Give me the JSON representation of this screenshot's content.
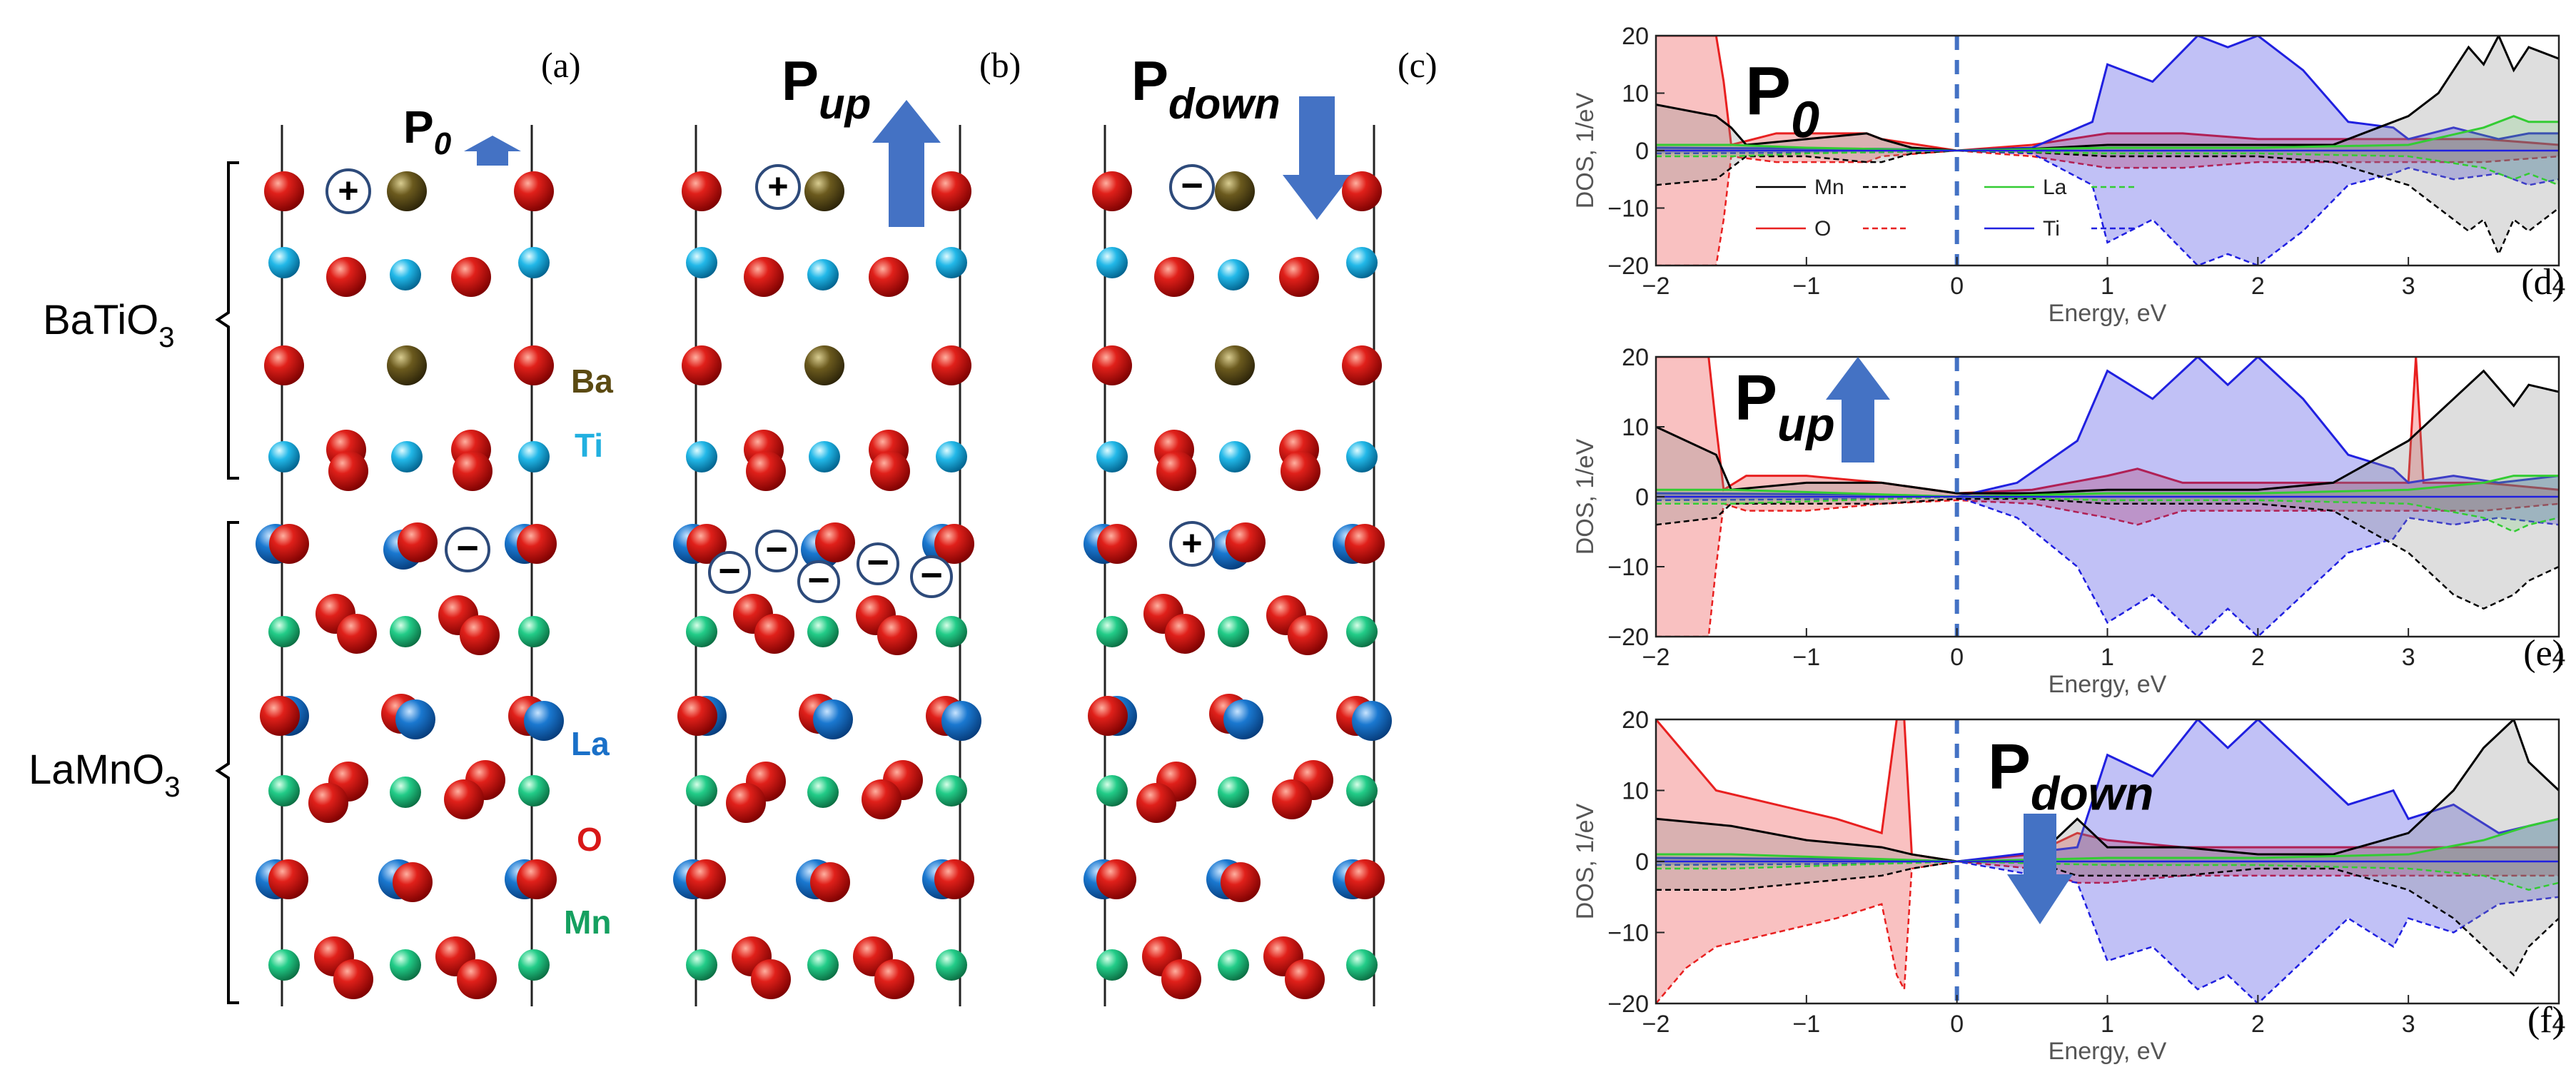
{
  "panel_labels": [
    "(a)",
    "(b)",
    "(c)",
    "(d)",
    "(e)",
    "(f)"
  ],
  "structure": {
    "bto_label": "BaTiO",
    "bto_sub": "3",
    "lmo_label": "LaMnO",
    "lmo_sub": "3",
    "legend": {
      "ba": "Ba",
      "ti": "Ti",
      "la": "La",
      "o": "O",
      "mn": "Mn"
    },
    "polarization": [
      {
        "p": "P",
        "sub": "0",
        "direction": "up"
      },
      {
        "p": "P",
        "sub": "up",
        "direction": "up"
      },
      {
        "p": "P",
        "sub": "down",
        "direction": "down"
      }
    ],
    "charges": {
      "a": [
        "+",
        "−"
      ],
      "b": [
        "+",
        "−",
        "−",
        "−",
        "−",
        "−"
      ],
      "c": [
        "−",
        "+"
      ]
    }
  },
  "chart_data": [
    {
      "type": "area",
      "panel": "(d)",
      "annotation": "P0",
      "xlabel": "Energy, eV",
      "ylabel": "DOS, 1/eV",
      "xlim": [
        -2,
        4
      ],
      "ylim": [
        -20,
        20
      ],
      "xticks": [
        -2,
        -1,
        0,
        1,
        2,
        3,
        4
      ],
      "yticks": [
        -20,
        -10,
        0,
        10,
        20
      ],
      "fermi_level": 0,
      "legend": [
        "Mn",
        "La",
        "O",
        "Ti"
      ],
      "series": [
        {
          "name": "Mn",
          "color": "#000000",
          "x": [
            -2,
            -1.6,
            -1.5,
            -1.4,
            -1.0,
            -0.6,
            -0.5,
            -0.3,
            0,
            0.5,
            1.0,
            1.5,
            2.0,
            2.5,
            3.0,
            3.2,
            3.4,
            3.5,
            3.6,
            3.7,
            3.8,
            4.0
          ],
          "up": [
            8,
            6,
            4,
            1,
            2,
            3,
            2,
            0.5,
            0,
            0.3,
            1,
            1,
            1,
            1,
            6,
            10,
            18,
            15,
            20,
            14,
            18,
            16
          ],
          "down": [
            -6,
            -5,
            -3,
            -1,
            -1,
            -2,
            -2,
            -0.5,
            0,
            -0.3,
            -1,
            -1,
            -1,
            -2,
            -6,
            -10,
            -14,
            -12,
            -18,
            -12,
            -14,
            -10
          ]
        },
        {
          "name": "La",
          "color": "#33cc33",
          "x": [
            -2,
            -1.5,
            -1,
            0,
            1,
            2,
            3,
            3.5,
            3.7,
            3.8,
            4.0
          ],
          "up": [
            1,
            1,
            0.5,
            0,
            0.5,
            0.5,
            1,
            4,
            6,
            5,
            5
          ],
          "down": [
            -1,
            -1,
            -0.5,
            0,
            -0.5,
            -0.5,
            -1,
            -3,
            -5,
            -4,
            -6
          ]
        },
        {
          "name": "O",
          "color": "#e82020",
          "x": [
            -2,
            -1.9,
            -1.8,
            -1.7,
            -1.6,
            -1.55,
            -1.5,
            -1.2,
            -1.0,
            -0.6,
            -0.5,
            0,
            0.5,
            1.0,
            1.5,
            2.0,
            2.5,
            3.0,
            3.5,
            4.0
          ],
          "up": [
            20,
            20,
            20,
            20,
            20,
            12,
            1,
            3,
            3,
            3,
            2,
            0,
            1,
            3,
            3,
            2,
            2,
            2,
            2,
            1
          ],
          "down": [
            -20,
            -20,
            -20,
            -20,
            -20,
            -12,
            -1,
            -2,
            -2,
            -2,
            -1,
            0,
            -1,
            -3,
            -3,
            -2,
            -2,
            -2,
            -2,
            -1
          ]
        },
        {
          "name": "Ti",
          "color": "#2020e0",
          "x": [
            -2,
            -0.5,
            0,
            0.5,
            0.9,
            1.0,
            1.3,
            1.6,
            1.8,
            2.0,
            2.3,
            2.6,
            2.9,
            3.0,
            3.3,
            3.6,
            3.8,
            4.0
          ],
          "up": [
            0.5,
            0.3,
            0,
            0.5,
            5,
            15,
            12,
            25,
            18,
            25,
            14,
            5,
            4,
            2,
            4,
            2,
            3,
            3
          ],
          "down": [
            -0.5,
            -0.3,
            0,
            -0.5,
            -6,
            -16,
            -12,
            -22,
            -18,
            -24,
            -14,
            -6,
            -4,
            -3,
            -5,
            -4,
            -6,
            -5
          ]
        }
      ]
    },
    {
      "type": "area",
      "panel": "(e)",
      "annotation": "Pup",
      "xlabel": "Energy, eV",
      "ylabel": "DOS, 1/eV",
      "xlim": [
        -2,
        4
      ],
      "ylim": [
        -20,
        20
      ],
      "xticks": [
        -2,
        -1,
        0,
        1,
        2,
        3,
        4
      ],
      "yticks": [
        -20,
        -10,
        0,
        10,
        20
      ],
      "fermi_level": 0,
      "series": [
        {
          "name": "Mn",
          "color": "#000000",
          "x": [
            -2,
            -1.6,
            -1.5,
            -1.0,
            -0.5,
            0,
            0.5,
            1.0,
            1.5,
            2.0,
            2.5,
            3.0,
            3.3,
            3.5,
            3.7,
            3.8,
            4.0
          ],
          "up": [
            10,
            6,
            1,
            2,
            2,
            0.5,
            0.5,
            1,
            1,
            1,
            2,
            8,
            14,
            18,
            13,
            16,
            15
          ],
          "down": [
            -4,
            -3,
            -1,
            -1,
            -1,
            -0.3,
            -0.3,
            -1,
            -1,
            -1,
            -2,
            -8,
            -14,
            -16,
            -14,
            -12,
            -10
          ]
        },
        {
          "name": "La",
          "color": "#33cc33",
          "x": [
            -2,
            -1.5,
            0,
            1,
            2,
            3,
            3.5,
            3.7,
            3.8,
            4.0
          ],
          "up": [
            1,
            1,
            0,
            0.5,
            0.5,
            1,
            2,
            3,
            3,
            3
          ],
          "down": [
            -1,
            -1,
            0,
            -0.5,
            -0.5,
            -1,
            -3,
            -5,
            -4,
            -3
          ]
        },
        {
          "name": "O",
          "color": "#e82020",
          "x": [
            -2,
            -1.8,
            -1.65,
            -1.6,
            -1.55,
            -1.4,
            -1.0,
            -0.5,
            0,
            0.5,
            1.0,
            1.2,
            1.5,
            2.0,
            2.5,
            3.0,
            3.05,
            3.1,
            3.5,
            4.0
          ],
          "up": [
            20,
            20,
            20,
            10,
            1,
            3,
            3,
            2,
            0.5,
            1,
            3,
            4,
            2,
            2,
            2,
            2,
            20,
            2,
            2,
            1
          ],
          "down": [
            -20,
            -20,
            -20,
            -10,
            -1,
            -2,
            -2,
            -1,
            -0.5,
            -1,
            -3,
            -4,
            -2,
            -2,
            -2,
            -2,
            -2,
            -2,
            -2,
            -1
          ]
        },
        {
          "name": "Ti",
          "color": "#2020e0",
          "x": [
            -2,
            -0.5,
            0,
            0.4,
            0.8,
            1.0,
            1.3,
            1.6,
            1.8,
            2.0,
            2.3,
            2.6,
            2.9,
            3.0,
            3.3,
            3.6,
            4.0
          ],
          "up": [
            0.5,
            0.3,
            0,
            2,
            8,
            18,
            14,
            20,
            16,
            20,
            14,
            6,
            4,
            2,
            3,
            2,
            3
          ],
          "down": [
            -0.5,
            -0.3,
            0,
            -3,
            -10,
            -18,
            -14,
            -20,
            -16,
            -20,
            -14,
            -8,
            -6,
            -3,
            -4,
            -3,
            -4
          ]
        }
      ]
    },
    {
      "type": "area",
      "panel": "(f)",
      "annotation": "Pdown",
      "xlabel": "Energy, eV",
      "ylabel": "DOS, 1/eV",
      "xlim": [
        -2,
        4
      ],
      "ylim": [
        -20,
        20
      ],
      "xticks": [
        -2,
        -1,
        0,
        1,
        2,
        3,
        4
      ],
      "yticks": [
        -20,
        -10,
        0,
        10,
        20
      ],
      "fermi_level": 0,
      "series": [
        {
          "name": "Mn",
          "color": "#000000",
          "x": [
            -2,
            -1.5,
            -1.0,
            -0.5,
            -0.3,
            0,
            0.5,
            0.8,
            1.0,
            1.5,
            2.0,
            2.5,
            3.0,
            3.3,
            3.5,
            3.7,
            3.8,
            4.0
          ],
          "up": [
            6,
            5,
            3,
            2,
            1,
            0,
            0,
            6,
            2,
            2,
            1,
            1,
            4,
            10,
            16,
            20,
            14,
            10
          ],
          "down": [
            -4,
            -4,
            -3,
            -2,
            -1,
            0,
            0,
            -2,
            -2,
            -2,
            -1,
            -1,
            -4,
            -8,
            -12,
            -16,
            -12,
            -8
          ]
        },
        {
          "name": "La",
          "color": "#33cc33",
          "x": [
            -2,
            -1.5,
            0,
            1,
            2,
            3,
            3.5,
            3.8,
            4.0
          ],
          "up": [
            1,
            1,
            0,
            0.5,
            0.5,
            1,
            3,
            5,
            6
          ],
          "down": [
            -1,
            -1,
            0,
            -0.5,
            -0.5,
            -1,
            -2,
            -4,
            -3
          ]
        },
        {
          "name": "O",
          "color": "#e82020",
          "x": [
            -2,
            -1.8,
            -1.6,
            -1.2,
            -0.8,
            -0.5,
            -0.4,
            -0.35,
            -0.3,
            0,
            0.5,
            0.8,
            1.0,
            1.5,
            2.0,
            2.5,
            3.0,
            3.5,
            4.0
          ],
          "up": [
            20,
            15,
            10,
            8,
            6,
            4,
            20,
            20,
            1,
            0,
            1,
            4,
            3,
            2,
            2,
            2,
            2,
            2,
            2
          ],
          "down": [
            -20,
            -15,
            -12,
            -10,
            -8,
            -6,
            -16,
            -18,
            -1,
            0,
            -1,
            -3,
            -3,
            -2,
            -2,
            -2,
            -2,
            -2,
            -2
          ]
        },
        {
          "name": "Ti",
          "color": "#2020e0",
          "x": [
            -2,
            -0.5,
            0,
            0.8,
            1.0,
            1.3,
            1.6,
            1.8,
            2.0,
            2.3,
            2.6,
            2.9,
            3.0,
            3.3,
            3.6,
            4.0
          ],
          "up": [
            0.5,
            0.3,
            0,
            2,
            15,
            12,
            20,
            16,
            20,
            14,
            8,
            10,
            6,
            8,
            4,
            6
          ],
          "down": [
            -0.5,
            -0.3,
            0,
            -3,
            -14,
            -12,
            -18,
            -16,
            -20,
            -14,
            -8,
            -12,
            -8,
            -10,
            -6,
            -5
          ]
        }
      ]
    }
  ]
}
